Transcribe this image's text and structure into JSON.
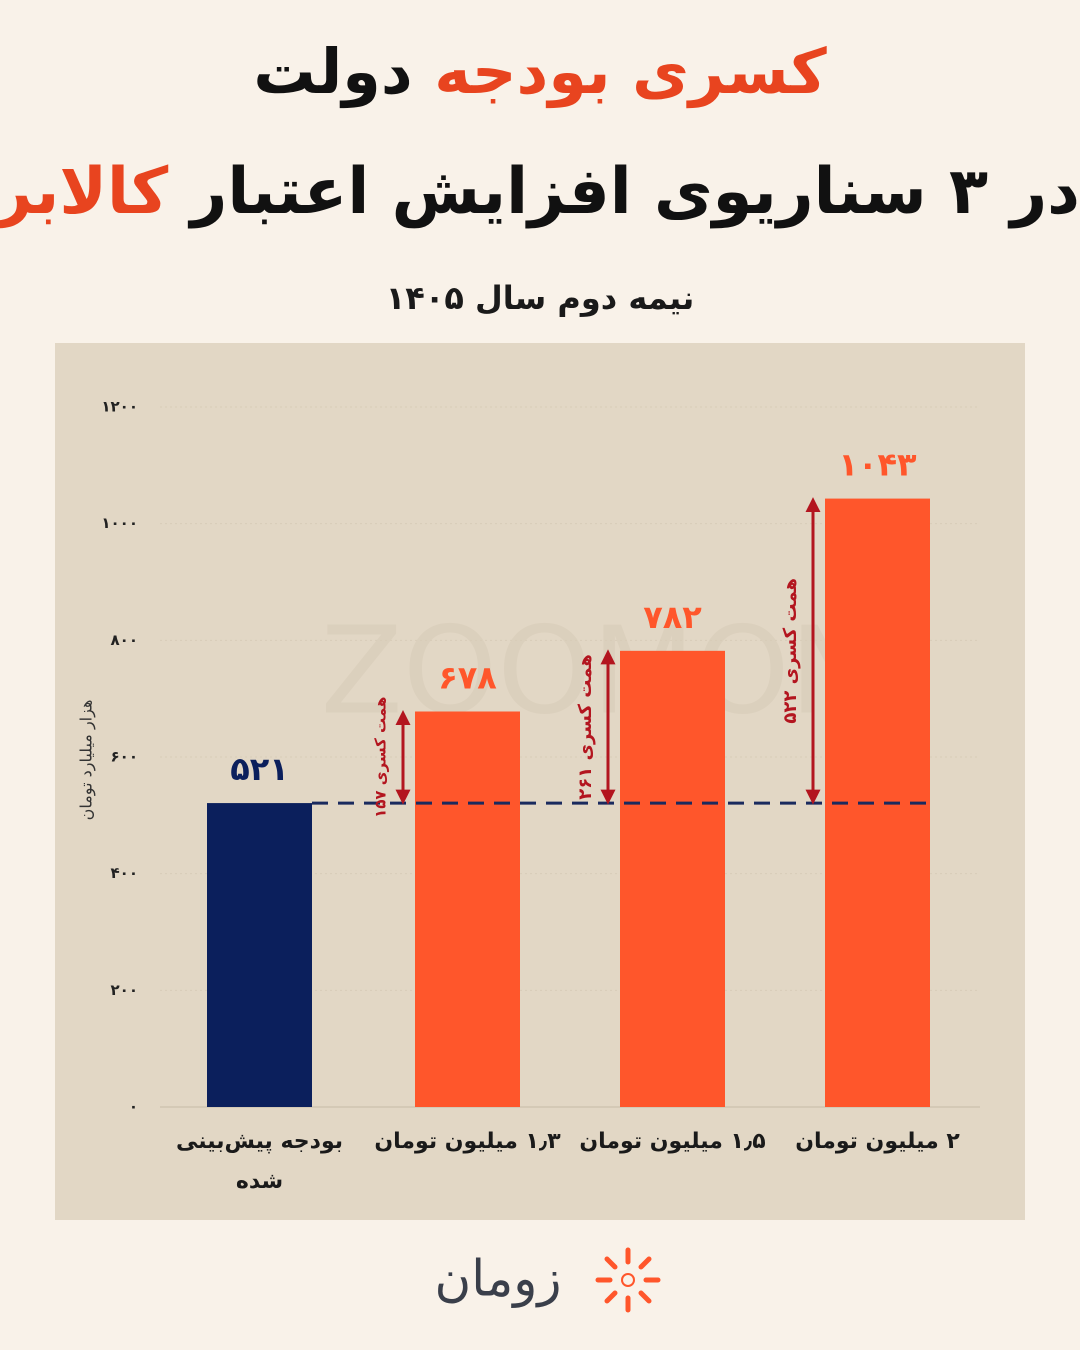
{
  "header": {
    "title_lines": [
      [
        {
          "text": "کسری بودجه",
          "color": "#e8441f"
        },
        {
          "text": "دولت",
          "color": "#111111"
        }
      ],
      [
        {
          "text": "در ۳ سناریوی افزایش اعتبار",
          "color": "#111111"
        },
        {
          "text": "کالابرگ",
          "color": "#e8441f"
        }
      ]
    ]
  },
  "chart_data": {
    "type": "bar",
    "subtitle": "نیمه دوم سال ۱۴۰۵",
    "y_label": "هزار میلیارد تومان",
    "categories": [
      "بودجه پیش‌بینی شده",
      "۱٫۳ میلیون تومان",
      "۱٫۵ میلیون تومان",
      "۲ میلیون تومان"
    ],
    "values": [
      521,
      678,
      782,
      1043
    ],
    "value_labels": [
      "۵۲۱",
      "۶۷۸",
      "۷۸۲",
      "۱۰۴۳"
    ],
    "colors": [
      "#0b1f5c",
      "#ff562b",
      "#ff562b",
      "#ff562b"
    ],
    "ylim": [
      0,
      1200
    ],
    "yticks": [
      {
        "value": 0,
        "label": "۰"
      },
      {
        "value": 200,
        "label": "۲۰۰"
      },
      {
        "value": 400,
        "label": "۴۰۰"
      },
      {
        "value": 600,
        "label": "۶۰۰"
      },
      {
        "value": 800,
        "label": "۸۰۰"
      },
      {
        "value": 1000,
        "label": "۱۰۰۰"
      },
      {
        "value": 1200,
        "label": "۱۲۰۰"
      }
    ],
    "grid": true,
    "annotations": [
      {
        "value": 157,
        "label": "۱۵۷ همت کسری"
      },
      {
        "value": 261,
        "label": "۲۶۱ همت کسری"
      },
      {
        "value": 522,
        "label": "۵۲۲ همت کسری"
      }
    ],
    "annotation_color": "#b3151f",
    "watermark": "ZOOMON"
  },
  "footer": {
    "logo": "زومان"
  }
}
